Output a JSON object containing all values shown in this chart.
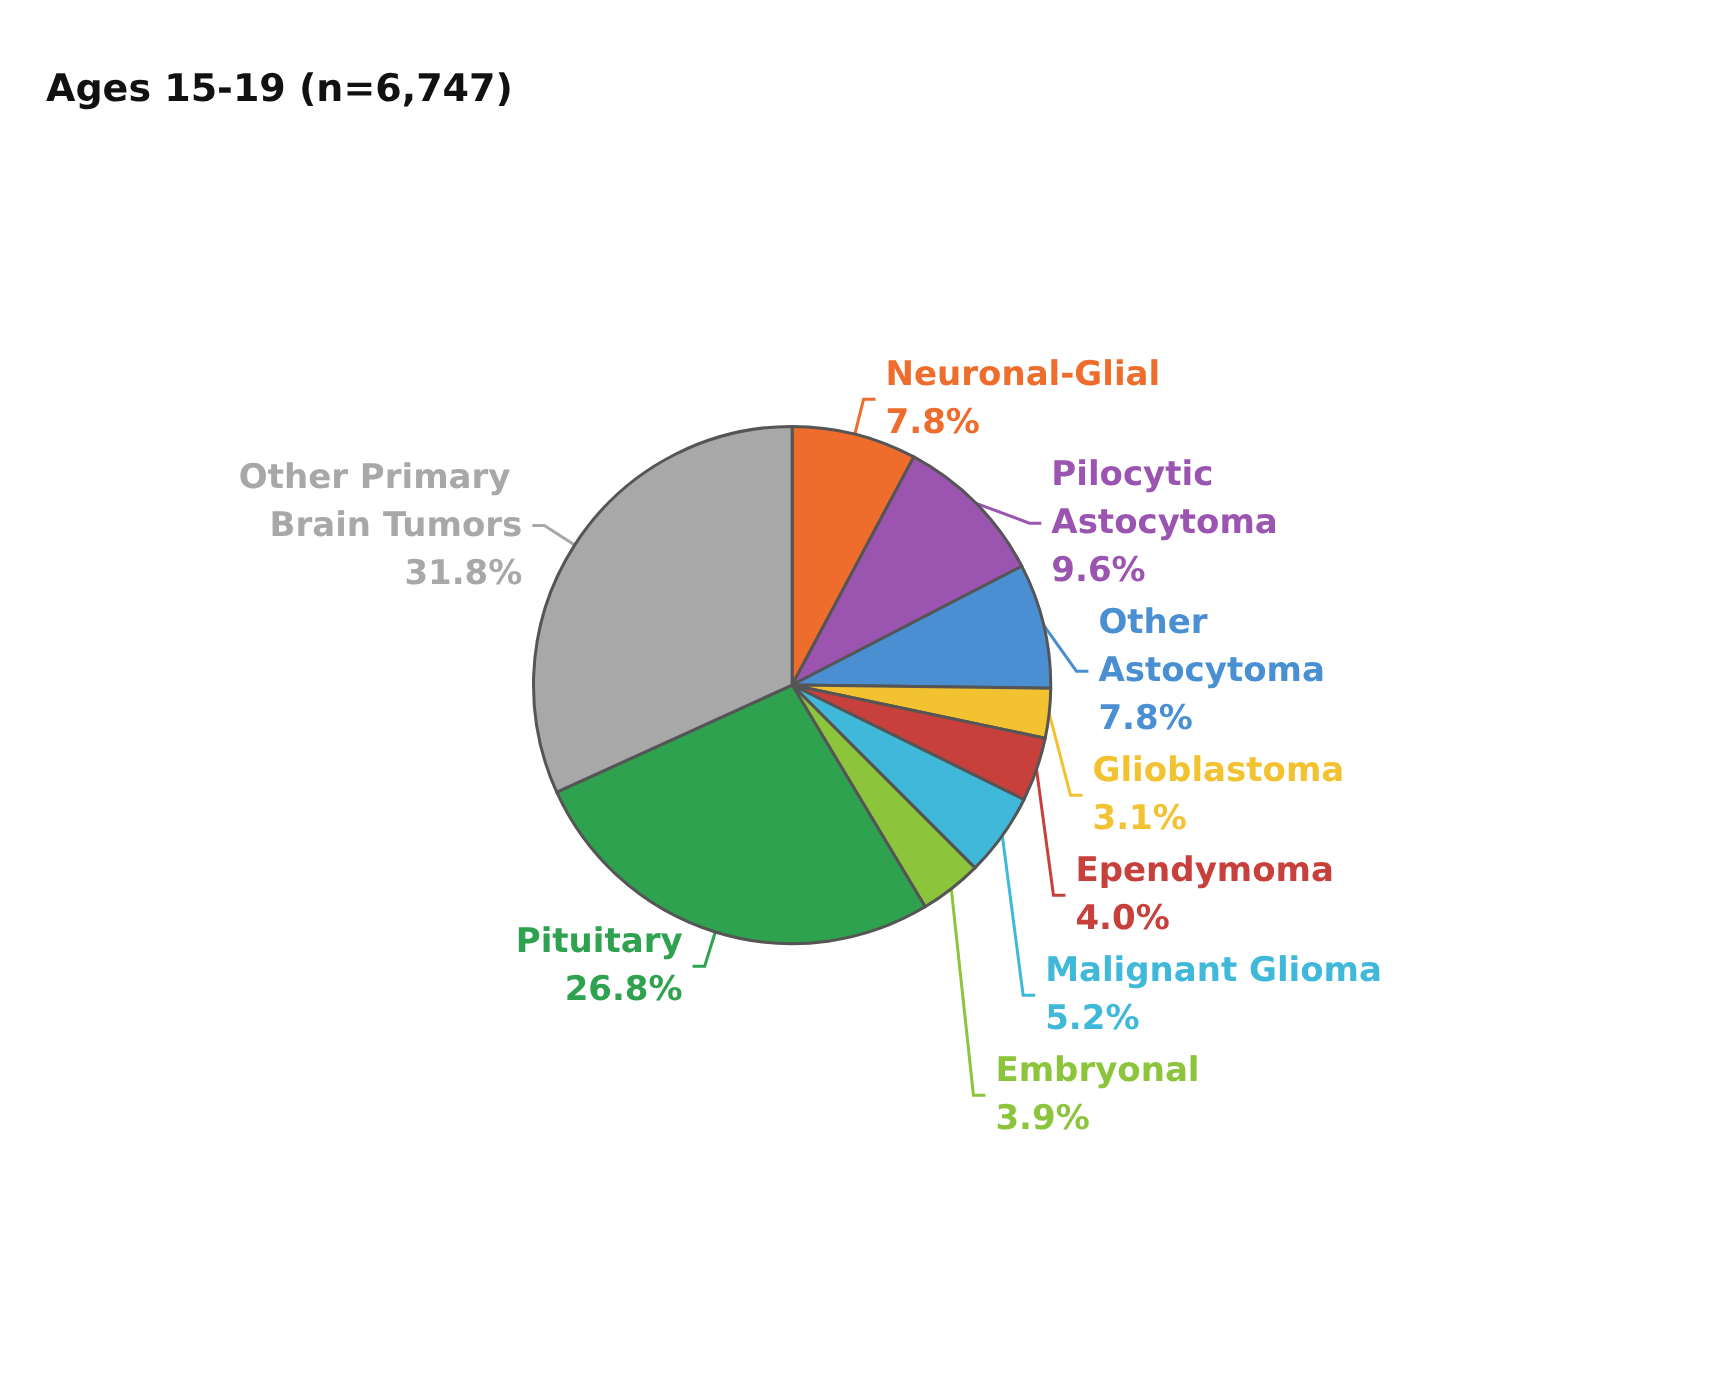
{
  "chart_data": {
    "type": "pie",
    "title": "Ages 15-19 (n=6,747)",
    "categories": [
      "Neuronal-Glial",
      "Pilocytic Astocytoma",
      "Other Astocytoma",
      "Glioblastoma",
      "Ependymoma",
      "Malignant Glioma",
      "Embryonal",
      "Pituitary",
      "Other Primary Brain Tumors"
    ],
    "values": [
      7.8,
      9.6,
      7.8,
      3.1,
      4.0,
      5.2,
      3.9,
      26.8,
      31.8
    ],
    "value_labels": [
      "7.8%",
      "9.6%",
      "7.8%",
      "3.1%",
      "4.0%",
      "5.2%",
      "3.9%",
      "26.8%",
      "31.8%"
    ],
    "colors": [
      "#ee6c2c",
      "#9b55b0",
      "#4a8fd2",
      "#f2c230",
      "#c8403c",
      "#3fb8da",
      "#8cc43c",
      "#2ea24e",
      "#a8a8a8"
    ],
    "legend": false
  }
}
